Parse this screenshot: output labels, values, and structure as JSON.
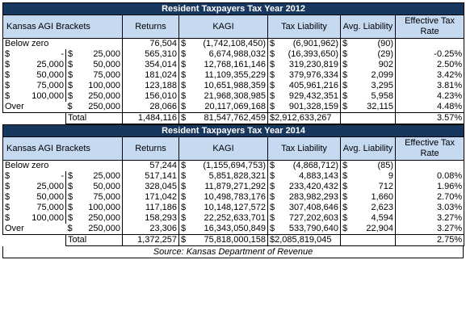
{
  "headers": {
    "bracket": "Kansas AGI Brackets",
    "returns": "Returns",
    "kagi": "KAGI",
    "tax": "Tax Liability",
    "avg": "Avg. Liability",
    "eff": "Effective Tax Rate"
  },
  "tables": [
    {
      "title": "Resident Taxpayers   Tax Year 2012",
      "rows": [
        {
          "lo_sign": "",
          "lo": "Below zero",
          "hi_sign": "",
          "hi": "",
          "returns": "76,504",
          "kagi_sign": "$",
          "kagi": "(1,742,108,450)",
          "tax_sign": "$",
          "tax": "(6,901,962)",
          "avg_sign": "$",
          "avg": "(90)",
          "eff": ""
        },
        {
          "lo_sign": "$",
          "lo": "-",
          "hi_sign": "$",
          "hi": "25,000",
          "returns": "565,310",
          "kagi_sign": "$",
          "kagi": "6,674,988,032",
          "tax_sign": "$",
          "tax": "(16,393,650)",
          "avg_sign": "$",
          "avg": "(29)",
          "eff": "-0.25%"
        },
        {
          "lo_sign": "$",
          "lo": "25,000",
          "hi_sign": "$",
          "hi": "50,000",
          "returns": "354,014",
          "kagi_sign": "$",
          "kagi": "12,768,161,146",
          "tax_sign": "$",
          "tax": "319,230,819",
          "avg_sign": "$",
          "avg": "902",
          "eff": "2.50%"
        },
        {
          "lo_sign": "$",
          "lo": "50,000",
          "hi_sign": "$",
          "hi": "75,000",
          "returns": "181,024",
          "kagi_sign": "$",
          "kagi": "11,109,355,229",
          "tax_sign": "$",
          "tax": "379,976,334",
          "avg_sign": "$",
          "avg": "2,099",
          "eff": "3.42%"
        },
        {
          "lo_sign": "$",
          "lo": "75,000",
          "hi_sign": "$",
          "hi": "100,000",
          "returns": "123,188",
          "kagi_sign": "$",
          "kagi": "10,651,988,359",
          "tax_sign": "$",
          "tax": "405,961,216",
          "avg_sign": "$",
          "avg": "3,295",
          "eff": "3.81%"
        },
        {
          "lo_sign": "$",
          "lo": "100,000",
          "hi_sign": "$",
          "hi": "250,000",
          "returns": "156,010",
          "kagi_sign": "$",
          "kagi": "21,968,308,985",
          "tax_sign": "$",
          "tax": "929,432,351",
          "avg_sign": "$",
          "avg": "5,958",
          "eff": "4.23%"
        },
        {
          "lo_sign": "",
          "lo": "Over",
          "hi_sign": "$",
          "hi": "250,000",
          "returns": "28,066",
          "kagi_sign": "$",
          "kagi": "20,117,069,168",
          "tax_sign": "$",
          "tax": "901,328,159",
          "avg_sign": "$",
          "avg": "32,115",
          "eff": "4.48%"
        }
      ],
      "total": {
        "label": "Total",
        "returns": "1,484,116",
        "kagi_sign": "$",
        "kagi": "81,547,762,459",
        "tax": "$2,912,633,267",
        "eff": "3.57%"
      }
    },
    {
      "title": "Resident Taxpayers   Tax Year 2014",
      "rows": [
        {
          "lo_sign": "",
          "lo": "Below zero",
          "hi_sign": "",
          "hi": "",
          "returns": "57,244",
          "kagi_sign": "$",
          "kagi": "(1,155,694,753)",
          "tax_sign": "$",
          "tax": "(4,868,712)",
          "avg_sign": "$",
          "avg": "(85)",
          "eff": ""
        },
        {
          "lo_sign": "$",
          "lo": "-",
          "hi_sign": "$",
          "hi": "25,000",
          "returns": "517,141",
          "kagi_sign": "$",
          "kagi": "5,851,828,321",
          "tax_sign": "$",
          "tax": "4,883,143",
          "avg_sign": "$",
          "avg": "9",
          "eff": "0.08%"
        },
        {
          "lo_sign": "$",
          "lo": "25,000",
          "hi_sign": "$",
          "hi": "50,000",
          "returns": "328,045",
          "kagi_sign": "$",
          "kagi": "11,879,271,292",
          "tax_sign": "$",
          "tax": "233,420,432",
          "avg_sign": "$",
          "avg": "712",
          "eff": "1.96%"
        },
        {
          "lo_sign": "$",
          "lo": "50,000",
          "hi_sign": "$",
          "hi": "75,000",
          "returns": "171,042",
          "kagi_sign": "$",
          "kagi": "10,498,783,176",
          "tax_sign": "$",
          "tax": "283,982,293",
          "avg_sign": "$",
          "avg": "1,660",
          "eff": "2.70%"
        },
        {
          "lo_sign": "$",
          "lo": "75,000",
          "hi_sign": "$",
          "hi": "100,000",
          "returns": "117,186",
          "kagi_sign": "$",
          "kagi": "10,148,127,572",
          "tax_sign": "$",
          "tax": "307,408,646",
          "avg_sign": "$",
          "avg": "2,623",
          "eff": "3.03%"
        },
        {
          "lo_sign": "$",
          "lo": "100,000",
          "hi_sign": "$",
          "hi": "250,000",
          "returns": "158,293",
          "kagi_sign": "$",
          "kagi": "22,252,633,701",
          "tax_sign": "$",
          "tax": "727,202,603",
          "avg_sign": "$",
          "avg": "4,594",
          "eff": "3.27%"
        },
        {
          "lo_sign": "",
          "lo": "Over",
          "hi_sign": "$",
          "hi": "250,000",
          "returns": "23,306",
          "kagi_sign": "$",
          "kagi": "16,343,050,849",
          "tax_sign": "$",
          "tax": "533,790,640",
          "avg_sign": "$",
          "avg": "22,904",
          "eff": "3.27%"
        }
      ],
      "total": {
        "label": "Total",
        "returns": "1,372,257",
        "kagi_sign": "$",
        "kagi": "75,818,000,158",
        "tax": "$2,085,819,045",
        "eff": "2.75%"
      }
    }
  ],
  "source": "Source: Kansas Department of Revenue",
  "colors": {
    "title_bg": "#17375e",
    "header_bg": "#c5d9f1"
  }
}
